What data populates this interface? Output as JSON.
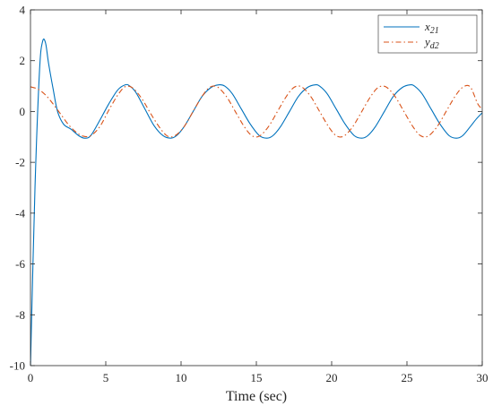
{
  "chart_data": {
    "type": "line",
    "title": "",
    "xlabel": "Time (sec)",
    "ylabel": "",
    "xlim": [
      0,
      30
    ],
    "ylim": [
      -10,
      4
    ],
    "xticks": [
      0,
      5,
      10,
      15,
      20,
      25,
      30
    ],
    "yticks": [
      -10,
      -8,
      -6,
      -4,
      -2,
      0,
      2,
      4
    ],
    "grid": false,
    "legend_position": "top-right",
    "series": [
      {
        "name": "x21",
        "label_main": "x",
        "label_sub": "21",
        "color": "#0072BD",
        "style": "solid",
        "x": [
          0,
          0.3,
          0.6,
          0.8,
          1.0,
          1.2,
          1.5,
          1.8,
          2.2,
          2.7,
          3.2,
          3.6,
          4.0,
          4.6,
          5.2,
          5.8,
          6.3,
          6.6,
          7.0,
          7.6,
          8.2,
          8.8,
          9.3,
          9.7,
          10.2,
          10.8,
          11.4,
          12.0,
          12.5,
          12.9,
          13.4,
          14.0,
          14.6,
          15.2,
          15.7,
          16.1,
          16.6,
          17.2,
          17.8,
          18.4,
          18.9,
          19.2,
          19.7,
          20.3,
          20.9,
          21.5,
          22.0,
          22.4,
          22.9,
          23.5,
          24.1,
          24.7,
          25.2,
          25.5,
          26.0,
          26.6,
          27.2,
          27.8,
          28.3,
          28.7,
          29.2,
          29.6,
          30.0
        ],
        "y": [
          -10.0,
          -3.0,
          1.6,
          2.75,
          2.7,
          1.9,
          0.9,
          0.0,
          -0.5,
          -0.7,
          -0.95,
          -1.05,
          -0.95,
          -0.35,
          0.3,
          0.85,
          1.05,
          1.0,
          0.75,
          0.1,
          -0.55,
          -0.95,
          -1.05,
          -0.95,
          -0.6,
          0.0,
          0.6,
          0.95,
          1.05,
          1.0,
          0.7,
          0.1,
          -0.5,
          -0.95,
          -1.05,
          -0.95,
          -0.6,
          0.0,
          0.6,
          0.95,
          1.05,
          1.0,
          0.7,
          0.1,
          -0.5,
          -0.95,
          -1.05,
          -0.95,
          -0.6,
          0.0,
          0.6,
          0.95,
          1.05,
          1.0,
          0.7,
          0.1,
          -0.5,
          -0.95,
          -1.05,
          -0.95,
          -0.6,
          -0.3,
          -0.05
        ]
      },
      {
        "name": "yd2",
        "label_main": "y",
        "label_sub": "d2",
        "color": "#D95319",
        "style": "dashdot",
        "x": [
          0,
          0.5,
          1.0,
          1.5,
          2.0,
          2.5,
          3.0,
          3.5,
          4.0,
          4.6,
          5.2,
          5.8,
          6.3,
          6.8,
          7.4,
          8.0,
          8.6,
          9.1,
          9.6,
          10.2,
          10.8,
          11.4,
          11.9,
          12.4,
          13.0,
          13.6,
          14.2,
          14.7,
          15.2,
          15.8,
          16.4,
          17.0,
          17.5,
          18.0,
          18.6,
          19.2,
          19.8,
          20.3,
          20.8,
          21.4,
          22.0,
          22.6,
          23.1,
          23.6,
          24.2,
          24.8,
          25.4,
          25.9,
          26.4,
          27.0,
          27.6,
          28.2,
          28.7,
          29.2,
          29.7,
          30.0
        ],
        "y": [
          0.97,
          0.88,
          0.65,
          0.3,
          -0.1,
          -0.5,
          -0.8,
          -0.97,
          -0.95,
          -0.6,
          0.05,
          0.65,
          0.98,
          0.92,
          0.5,
          -0.1,
          -0.65,
          -0.97,
          -0.95,
          -0.6,
          0.0,
          0.6,
          0.95,
          0.97,
          0.6,
          0.0,
          -0.6,
          -0.95,
          -0.97,
          -0.6,
          0.0,
          0.6,
          0.95,
          0.97,
          0.6,
          0.0,
          -0.6,
          -0.95,
          -0.97,
          -0.6,
          0.0,
          0.6,
          0.95,
          0.97,
          0.6,
          0.0,
          -0.6,
          -0.95,
          -0.97,
          -0.6,
          0.0,
          0.6,
          0.95,
          0.97,
          0.3,
          0.1
        ]
      }
    ]
  }
}
